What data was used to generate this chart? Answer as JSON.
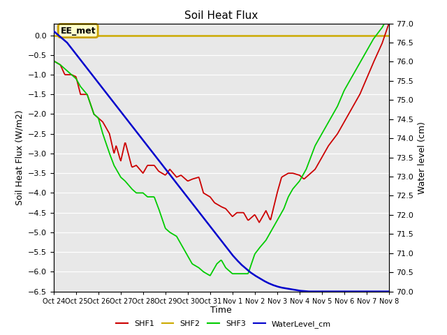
{
  "title": "Soil Heat Flux",
  "ylabel_left": "Soil Heat Flux (W/m2)",
  "ylabel_right": "Water level (cm)",
  "xlabel": "Time",
  "ylim_left": [
    -6.5,
    0.3
  ],
  "ylim_right": [
    70.0,
    77.0
  ],
  "background_color": "#e8e8e8",
  "annotation_label": "EE_met",
  "annotation_box_facecolor": "#ffffcc",
  "annotation_box_edgecolor": "#c8a000",
  "xtick_labels": [
    "Oct 24",
    "Oct 25",
    "Oct 26",
    "Oct 27",
    "Oct 28",
    "Oct 29",
    "Oct 30",
    "Oct 31",
    "Nov 1",
    "Nov 2",
    "Nov 3",
    "Nov 4",
    "Nov 5",
    "Nov 6",
    "Nov 7",
    "Nov 8"
  ],
  "colors": {
    "SHF1": "#cc0000",
    "SHF2": "#ccaa00",
    "SHF3": "#00cc00",
    "WaterLevel": "#0000cc"
  },
  "shf1": {
    "t": [
      0,
      0.3,
      0.5,
      0.8,
      1.0,
      1.2,
      1.5,
      1.8,
      2.0,
      2.2,
      2.5,
      2.7,
      2.8,
      3.0,
      3.2,
      3.5,
      3.7,
      4.0,
      4.2,
      4.5,
      4.7,
      5.0,
      5.2,
      5.5,
      5.7,
      6.0,
      6.2,
      6.5,
      6.7,
      7.0,
      7.2,
      7.5,
      7.7,
      8.0,
      8.2,
      8.5,
      8.7,
      9.0,
      9.2,
      9.5,
      9.7,
      10.0,
      10.2,
      10.5,
      10.7,
      11.0,
      11.2,
      11.5,
      11.7,
      12.0,
      12.3,
      12.7,
      13.0,
      13.3,
      13.7,
      14.0,
      14.3,
      14.7,
      15.0
    ],
    "y": [
      -0.65,
      -0.75,
      -1.0,
      -1.0,
      -1.05,
      -1.5,
      -1.5,
      -2.0,
      -2.1,
      -2.2,
      -2.5,
      -3.0,
      -2.8,
      -3.2,
      -2.7,
      -3.35,
      -3.3,
      -3.5,
      -3.3,
      -3.3,
      -3.45,
      -3.55,
      -3.4,
      -3.6,
      -3.55,
      -3.7,
      -3.65,
      -3.6,
      -4.0,
      -4.1,
      -4.25,
      -4.35,
      -4.4,
      -4.6,
      -4.5,
      -4.5,
      -4.7,
      -4.55,
      -4.75,
      -4.45,
      -4.7,
      -4.0,
      -3.6,
      -3.5,
      -3.5,
      -3.55,
      -3.65,
      -3.5,
      -3.4,
      -3.1,
      -2.8,
      -2.5,
      -2.2,
      -1.9,
      -1.5,
      -1.1,
      -0.7,
      -0.2,
      0.3
    ]
  },
  "shf3": {
    "t": [
      0,
      0.3,
      0.5,
      0.8,
      1.0,
      1.2,
      1.5,
      1.8,
      2.0,
      2.2,
      2.5,
      2.7,
      3.0,
      3.2,
      3.5,
      3.7,
      4.0,
      4.2,
      4.5,
      4.7,
      5.0,
      5.2,
      5.5,
      5.7,
      6.0,
      6.2,
      6.5,
      6.7,
      7.0,
      7.3,
      7.5,
      7.7,
      8.0,
      8.2,
      8.5,
      8.7,
      9.0,
      9.2,
      9.5,
      9.7,
      10.0,
      10.3,
      10.5,
      10.7,
      11.0,
      11.3,
      11.5,
      11.7,
      12.0,
      12.3,
      12.7,
      13.0,
      13.3,
      13.7,
      14.0,
      14.3,
      14.7,
      15.0
    ],
    "y": [
      -0.65,
      -0.75,
      -0.85,
      -1.0,
      -1.1,
      -1.3,
      -1.5,
      -2.0,
      -2.1,
      -2.5,
      -3.0,
      -3.3,
      -3.6,
      -3.7,
      -3.9,
      -4.0,
      -4.0,
      -4.1,
      -4.1,
      -4.4,
      -4.9,
      -5.0,
      -5.1,
      -5.3,
      -5.6,
      -5.8,
      -5.9,
      -6.0,
      -6.1,
      -5.8,
      -5.7,
      -5.9,
      -6.05,
      -6.05,
      -6.05,
      -6.05,
      -5.55,
      -5.4,
      -5.2,
      -5.0,
      -4.7,
      -4.4,
      -4.1,
      -3.9,
      -3.7,
      -3.4,
      -3.1,
      -2.8,
      -2.5,
      -2.2,
      -1.8,
      -1.4,
      -1.1,
      -0.7,
      -0.4,
      -0.1,
      0.2,
      0.5
    ]
  },
  "water": {
    "t": [
      0,
      0.2,
      0.4,
      0.6,
      0.8,
      1.0,
      1.2,
      1.4,
      1.6,
      1.8,
      2.0,
      2.2,
      2.4,
      2.6,
      2.8,
      3.0,
      3.2,
      3.4,
      3.6,
      3.8,
      4.0,
      4.2,
      4.4,
      4.6,
      4.8,
      5.0,
      5.2,
      5.4,
      5.6,
      5.8,
      6.0,
      6.2,
      6.4,
      6.6,
      6.8,
      7.0,
      7.2,
      7.4,
      7.6,
      7.8,
      8.0,
      8.2,
      8.4,
      8.6,
      8.8,
      9.0,
      9.2,
      9.4,
      9.6,
      9.8,
      10.0,
      10.2,
      10.4,
      10.6,
      10.8,
      11.0,
      11.2,
      11.4,
      11.6,
      11.8,
      12.0,
      12.2,
      12.4,
      12.6,
      12.8,
      13.0,
      13.2,
      13.4,
      13.6,
      13.8,
      14.0,
      14.2,
      14.4,
      14.6,
      14.8,
      15.0
    ],
    "y": [
      76.8,
      76.7,
      76.6,
      76.5,
      76.35,
      76.2,
      76.05,
      75.9,
      75.75,
      75.6,
      75.45,
      75.3,
      75.15,
      75.0,
      74.85,
      74.7,
      74.55,
      74.4,
      74.25,
      74.1,
      73.95,
      73.8,
      73.65,
      73.5,
      73.35,
      73.2,
      73.05,
      72.9,
      72.75,
      72.6,
      72.45,
      72.3,
      72.15,
      72.0,
      71.85,
      71.7,
      71.55,
      71.4,
      71.25,
      71.1,
      70.95,
      70.82,
      70.7,
      70.6,
      70.5,
      70.42,
      70.35,
      70.28,
      70.22,
      70.17,
      70.13,
      70.1,
      70.08,
      70.06,
      70.04,
      70.02,
      70.01,
      70.0,
      70.0,
      70.0,
      70.0,
      70.0,
      70.0,
      70.0,
      70.0,
      70.0,
      70.0,
      70.0,
      70.0,
      70.0,
      70.0,
      70.0,
      70.0,
      70.0,
      70.0,
      70.0
    ]
  }
}
